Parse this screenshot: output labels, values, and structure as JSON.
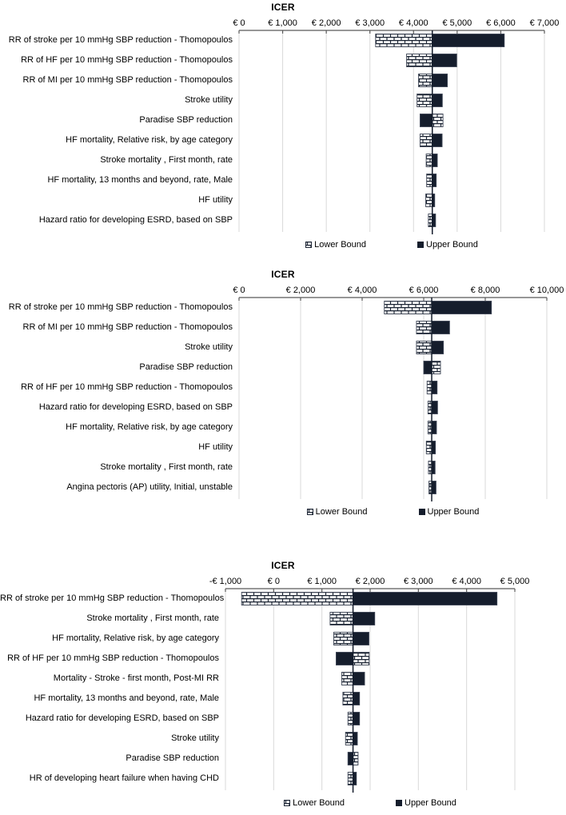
{
  "page": {
    "background": "#ffffff"
  },
  "legend": {
    "lower_label": "Lower Bound",
    "upper_label": "Upper Bound"
  },
  "colors": {
    "upper_fill": "#151d2c",
    "hatch_line": "#1b2433",
    "hatch_bg": "#ffffff",
    "bar_stroke": "#3c4454",
    "grid": "#d9d9d9",
    "axis": "#595959",
    "baseline": "#151d2c",
    "text": "#000000"
  },
  "chart_data": [
    {
      "type": "bar",
      "variant": "tornado",
      "title": "ICER",
      "xlabel": "",
      "grid": true,
      "legend_position": "bottom",
      "axis": {
        "min": 0,
        "max": 7000,
        "tick_step": 1000,
        "tick_labels": [
          "€ 0",
          "€ 1,000",
          "€ 2,000",
          "€ 3,000",
          "€ 4,000",
          "€ 5,000",
          "€ 6,000",
          "€ 7,000"
        ]
      },
      "base_value": 4430,
      "series_names": [
        "Lower Bound",
        "Upper Bound"
      ],
      "items": [
        {
          "label": "RR of stroke per 10 mmHg SBP reduction - Thomopoulos",
          "lower": 3130,
          "upper": 6080
        },
        {
          "label": "RR of HF per 10 mmHg SBP reduction - Thomopoulos",
          "lower": 3840,
          "upper": 4990
        },
        {
          "label": "RR of MI per 10 mmHg SBP reduction - Thomopoulos",
          "lower": 4115,
          "upper": 4775
        },
        {
          "label": "Stroke utility",
          "lower": 4080,
          "upper": 4660
        },
        {
          "label": "Paradise SBP reduction",
          "lower": 4675,
          "upper": 4150
        },
        {
          "label": "HF mortality, Relative risk, by age category",
          "lower": 4150,
          "upper": 4655
        },
        {
          "label": "Stroke mortality , First month, rate",
          "lower": 4290,
          "upper": 4545
        },
        {
          "label": "HF mortality, 13 months and beyond, rate, Male",
          "lower": 4300,
          "upper": 4520
        },
        {
          "label": "HF utility",
          "lower": 4280,
          "upper": 4485
        },
        {
          "label": "Hazard ratio for developing ESRD, based on SBP",
          "lower": 4340,
          "upper": 4505
        }
      ]
    },
    {
      "type": "bar",
      "variant": "tornado",
      "title": "ICER",
      "xlabel": "",
      "grid": true,
      "legend_position": "bottom",
      "axis": {
        "min": 0,
        "max": 10000,
        "tick_step": 2000,
        "tick_labels": [
          "€ 0",
          "€ 2,000",
          "€ 4,000",
          "€ 6,000",
          "€ 8,000",
          "€ 10,000"
        ]
      },
      "base_value": 6260,
      "series_names": [
        "Lower Bound",
        "Upper Bound"
      ],
      "items": [
        {
          "label": "RR of stroke per 10 mmHg SBP reduction - Thomopoulos",
          "lower": 4720,
          "upper": 8200
        },
        {
          "label": "RR of MI per 10 mmHg SBP reduction - Thomopoulos",
          "lower": 5765,
          "upper": 6840
        },
        {
          "label": "Stroke utility",
          "lower": 5765,
          "upper": 6640
        },
        {
          "label": "Paradise SBP reduction",
          "lower": 6545,
          "upper": 6000
        },
        {
          "label": "RR of HF per 10 mmHg SBP reduction - Thomopoulos",
          "lower": 6110,
          "upper": 6435
        },
        {
          "label": "Hazard ratio for developing ESRD, based on SBP",
          "lower": 6140,
          "upper": 6450
        },
        {
          "label": "HF mortality, Relative risk, by age category",
          "lower": 6140,
          "upper": 6415
        },
        {
          "label": "HF utility",
          "lower": 6085,
          "upper": 6380
        },
        {
          "label": "Stroke mortality , First month, rate",
          "lower": 6155,
          "upper": 6370
        },
        {
          "label": "Angina pectoris (AP) utility, Initial, unstable",
          "lower": 6170,
          "upper": 6400
        }
      ]
    },
    {
      "type": "bar",
      "variant": "tornado",
      "title": "ICER",
      "xlabel": "",
      "grid": true,
      "legend_position": "bottom",
      "axis": {
        "min": -1000,
        "max": 5000,
        "tick_step": 1000,
        "tick_labels": [
          "-€ 1,000",
          "€ 0",
          "€ 1,000",
          "€ 2,000",
          "€ 3,000",
          "€ 4,000",
          "€ 5,000"
        ]
      },
      "base_value": 1645,
      "series_names": [
        "Lower Bound",
        "Upper Bound"
      ],
      "items": [
        {
          "label": "RR of stroke per 10 mmHg SBP reduction - Thomopoulos",
          "lower": -665,
          "upper": 4630
        },
        {
          "label": "Stroke mortality , First month, rate",
          "lower": 1170,
          "upper": 2095
        },
        {
          "label": "HF mortality, Relative risk, by age category",
          "lower": 1245,
          "upper": 1975
        },
        {
          "label": "RR of HF per 10 mmHg SBP reduction - Thomopoulos",
          "lower": 1980,
          "upper": 1295
        },
        {
          "label": "Mortality - Stroke - first month, Post-MI RR",
          "lower": 1410,
          "upper": 1885
        },
        {
          "label": "HF mortality, 13 months and beyond, rate, Male",
          "lower": 1435,
          "upper": 1780
        },
        {
          "label": "Hazard ratio for developing ESRD, based on SBP",
          "lower": 1540,
          "upper": 1780
        },
        {
          "label": "Stroke utility",
          "lower": 1490,
          "upper": 1735
        },
        {
          "label": "Paradise SBP reduction",
          "lower": 1750,
          "upper": 1540
        },
        {
          "label": "HR of developing heart failure when having CHD",
          "lower": 1540,
          "upper": 1715
        }
      ]
    }
  ]
}
